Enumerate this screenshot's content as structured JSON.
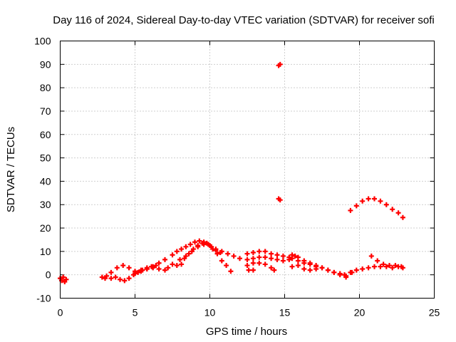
{
  "chart_data": {
    "type": "scatter",
    "title": "Day 116 of 2024, Sidereal Day-to-day VTEC variation (SDTVAR) for receiver sofi",
    "xlabel": "GPS time / hours",
    "ylabel": "SDTVAR / TECUs",
    "xlim": [
      0,
      25
    ],
    "ylim": [
      -10,
      100
    ],
    "xticks": [
      0,
      5,
      10,
      15,
      20,
      25
    ],
    "yticks": [
      -10,
      0,
      10,
      20,
      30,
      40,
      50,
      60,
      70,
      80,
      90,
      100
    ],
    "grid": true,
    "marker_color": "#ff0000",
    "series": [
      {
        "name": "s1",
        "x": [
          0.0,
          0.1,
          0.2,
          0.3,
          0.4
        ],
        "y": [
          -1.5,
          -2.5,
          -1.0,
          -3.0,
          -2.0
        ]
      },
      {
        "name": "s2",
        "x": [
          2.8,
          3.1,
          3.4,
          3.7,
          4.0,
          4.3,
          4.6,
          4.9,
          5.2,
          5.5,
          5.8,
          6.1,
          6.4
        ],
        "y": [
          -1.0,
          -0.5,
          -1.5,
          -1.0,
          -2.0,
          -2.5,
          -1.5,
          0.0,
          1.0,
          2.0,
          2.5,
          3.5,
          4.0
        ]
      },
      {
        "name": "s3",
        "x": [
          3.0,
          3.4,
          3.8,
          4.2,
          4.6,
          5.0,
          5.4,
          5.8,
          6.2,
          6.6,
          7.0
        ],
        "y": [
          -1.5,
          1.0,
          3.0,
          4.0,
          3.0,
          1.5,
          2.0,
          3.0,
          3.5,
          5.0,
          6.5
        ]
      },
      {
        "name": "s4",
        "x": [
          5.0,
          5.4,
          5.8,
          6.2,
          6.6,
          7.0,
          7.2
        ],
        "y": [
          0.5,
          1.5,
          2.5,
          3.0,
          2.5,
          2.0,
          3.0
        ]
      },
      {
        "name": "s5",
        "x": [
          7.5,
          7.8,
          8.1,
          8.4,
          8.7,
          9.0,
          9.3,
          9.6,
          9.9,
          10.2,
          10.5,
          10.8,
          11.1,
          11.4
        ],
        "y": [
          8.5,
          10.0,
          11.0,
          12.0,
          13.0,
          14.0,
          14.5,
          14.0,
          13.0,
          11.0,
          9.0,
          6.0,
          4.0,
          1.5
        ]
      },
      {
        "name": "s6",
        "x": [
          8.0,
          8.4,
          8.8,
          9.2,
          9.6,
          10.0,
          10.4,
          10.8,
          11.2,
          11.6,
          12.0
        ],
        "y": [
          6.5,
          8.0,
          10.0,
          12.0,
          13.0,
          12.5,
          11.0,
          10.0,
          9.0,
          8.0,
          7.0
        ]
      },
      {
        "name": "s7",
        "x": [
          8.3,
          8.6,
          8.9,
          9.2,
          9.5,
          9.8,
          10.1,
          10.4,
          10.7
        ],
        "y": [
          7.0,
          9.0,
          11.0,
          12.5,
          13.5,
          13.5,
          12.0,
          10.5,
          9.5
        ]
      },
      {
        "name": "s8",
        "x": [
          7.5,
          7.8,
          8.1
        ],
        "y": [
          4.5,
          4.0,
          4.5
        ]
      },
      {
        "name": "s9",
        "x": [
          12.5,
          12.9,
          13.3,
          13.7,
          14.1,
          14.5,
          14.9,
          15.3
        ],
        "y": [
          9.0,
          9.5,
          10.0,
          10.0,
          9.0,
          8.5,
          8.0,
          7.5
        ]
      },
      {
        "name": "s10",
        "x": [
          12.5,
          12.9,
          13.3,
          13.7,
          14.1,
          14.5,
          14.9,
          15.3,
          15.7
        ],
        "y": [
          6.5,
          7.0,
          7.5,
          7.5,
          7.0,
          6.5,
          6.0,
          6.5,
          8.0
        ]
      },
      {
        "name": "s11",
        "x": [
          12.5,
          12.9,
          13.3,
          13.7,
          14.1,
          14.3
        ],
        "y": [
          4.0,
          5.0,
          5.0,
          4.5,
          3.0,
          2.0
        ]
      },
      {
        "name": "s12",
        "x": [
          12.6,
          12.9
        ],
        "y": [
          2.0,
          2.0
        ]
      },
      {
        "name": "s13",
        "x": [
          14.6,
          14.7
        ],
        "y": [
          89.5,
          90.0
        ]
      },
      {
        "name": "s14",
        "x": [
          14.6,
          14.7
        ],
        "y": [
          32.5,
          32.0
        ]
      },
      {
        "name": "s15",
        "x": [
          15.5,
          15.9,
          16.3,
          16.7,
          17.1,
          17.5,
          17.9,
          18.3,
          18.7,
          19.1
        ],
        "y": [
          7.0,
          6.0,
          5.0,
          4.5,
          3.5,
          3.0,
          2.0,
          1.0,
          0.0,
          -1.0
        ]
      },
      {
        "name": "s16",
        "x": [
          15.5,
          15.9,
          16.3,
          16.7,
          17.1,
          17.5,
          17.9,
          18.3,
          18.7,
          19.1,
          19.5
        ],
        "y": [
          8.5,
          7.5,
          6.0,
          5.0,
          4.0,
          3.0,
          2.0,
          1.0,
          0.5,
          -0.5,
          1.0
        ]
      },
      {
        "name": "s17",
        "x": [
          15.5,
          15.9,
          16.3,
          16.7,
          17.1
        ],
        "y": [
          3.5,
          4.0,
          2.5,
          2.0,
          2.5
        ]
      },
      {
        "name": "s18",
        "x": [
          19.0,
          19.4,
          19.8,
          20.2,
          20.6,
          21.0,
          21.4,
          21.8,
          22.2,
          22.6,
          22.9
        ],
        "y": [
          0.0,
          1.0,
          2.0,
          2.5,
          3.0,
          3.5,
          3.5,
          3.5,
          3.0,
          3.5,
          3.0
        ]
      },
      {
        "name": "s19",
        "x": [
          20.8,
          21.2,
          21.6,
          22.0,
          22.4,
          22.8
        ],
        "y": [
          8.0,
          6.0,
          4.5,
          4.0,
          4.0,
          3.5
        ]
      },
      {
        "name": "s20",
        "x": [
          19.4,
          19.8,
          20.2,
          20.6,
          21.0,
          21.4,
          21.8,
          22.2,
          22.6,
          22.9
        ],
        "y": [
          27.5,
          29.5,
          31.5,
          32.5,
          32.5,
          31.5,
          30.0,
          28.0,
          26.5,
          24.5
        ]
      }
    ]
  }
}
